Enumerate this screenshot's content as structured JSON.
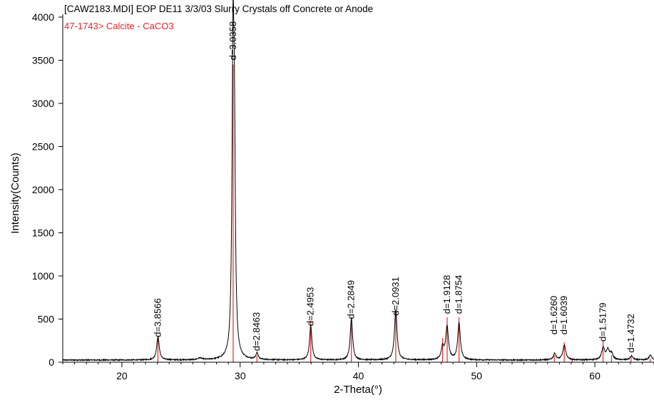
{
  "chart_data": {
    "type": "line",
    "title": "[CAW2183.MDI] EOP DE11 3/3/03 Slurry Crystals off Concrete or Anode",
    "reference_label": "47-1743> Calcite - CaCO3",
    "xlabel": "2-Theta(°)",
    "ylabel": "Intensity(Counts)",
    "xlim": [
      15,
      65
    ],
    "ylim": [
      0,
      4000
    ],
    "xticks": [
      20,
      30,
      40,
      50,
      60
    ],
    "yticks": [
      0,
      500,
      1000,
      1500,
      2000,
      2500,
      3000,
      3500,
      4000
    ],
    "grid": false,
    "baseline": 25,
    "peaks": [
      {
        "x": 23.05,
        "height": 270,
        "width": 0.13
      },
      {
        "x": 26.6,
        "height": 20,
        "width": 0.2
      },
      {
        "x": 29.4,
        "height": 3500,
        "width": 0.1
      },
      {
        "x": 29.52,
        "height": 1950,
        "width": 0.09
      },
      {
        "x": 31.43,
        "height": 75,
        "width": 0.12
      },
      {
        "x": 35.97,
        "height": 400,
        "width": 0.12
      },
      {
        "x": 39.41,
        "height": 480,
        "width": 0.12
      },
      {
        "x": 43.16,
        "height": 580,
        "width": 0.13
      },
      {
        "x": 47.12,
        "height": 140,
        "width": 0.13
      },
      {
        "x": 47.5,
        "height": 380,
        "width": 0.14
      },
      {
        "x": 48.51,
        "height": 430,
        "width": 0.13
      },
      {
        "x": 56.6,
        "height": 75,
        "width": 0.13
      },
      {
        "x": 57.42,
        "height": 170,
        "width": 0.15
      },
      {
        "x": 60.7,
        "height": 140,
        "width": 0.15
      },
      {
        "x": 61.1,
        "height": 110,
        "width": 0.15
      },
      {
        "x": 61.4,
        "height": 70,
        "width": 0.15
      },
      {
        "x": 63.1,
        "height": 45,
        "width": 0.15
      },
      {
        "x": 64.7,
        "height": 55,
        "width": 0.15
      }
    ],
    "reference_lines": [
      {
        "x": 23.05,
        "height": 280
      },
      {
        "x": 29.41,
        "height": 3450
      },
      {
        "x": 31.42,
        "height": 80
      },
      {
        "x": 35.97,
        "height": 480
      },
      {
        "x": 39.41,
        "height": 520
      },
      {
        "x": 43.16,
        "height": 580
      },
      {
        "x": 47.12,
        "height": 280
      },
      {
        "x": 47.51,
        "height": 520
      },
      {
        "x": 48.51,
        "height": 520
      },
      {
        "x": 56.57,
        "height": 80
      },
      {
        "x": 57.41,
        "height": 230
      },
      {
        "x": 58.08,
        "height": 30
      },
      {
        "x": 60.69,
        "height": 250
      },
      {
        "x": 61.41,
        "height": 80
      },
      {
        "x": 63.06,
        "height": 70
      },
      {
        "x": 64.68,
        "height": 40
      }
    ],
    "peak_labels": [
      {
        "text": "d=3.8566",
        "x": 23.05,
        "y": 290
      },
      {
        "text": "d=3.0358",
        "x": 29.41,
        "y": 3500
      },
      {
        "text": "d=2.8463",
        "x": 31.42,
        "y": 130
      },
      {
        "text": "d=2.4953",
        "x": 35.97,
        "y": 420
      },
      {
        "text": "d=2.2849",
        "x": 39.41,
        "y": 500
      },
      {
        "text": "d=2.0931",
        "x": 43.16,
        "y": 540
      },
      {
        "text": "d=1.9128",
        "x": 47.51,
        "y": 560
      },
      {
        "text": "d=1.8754",
        "x": 48.51,
        "y": 560
      },
      {
        "text": "d=1.6260",
        "x": 56.57,
        "y": 320
      },
      {
        "text": "d=1.6039",
        "x": 57.41,
        "y": 320
      },
      {
        "text": "d=1.5179",
        "x": 60.69,
        "y": 240
      },
      {
        "text": "d=1.4732",
        "x": 63.06,
        "y": 110
      }
    ],
    "colors": {
      "trace": "#000000",
      "reference": "#e8262a",
      "axis": "#000000",
      "text": "#000000"
    }
  }
}
